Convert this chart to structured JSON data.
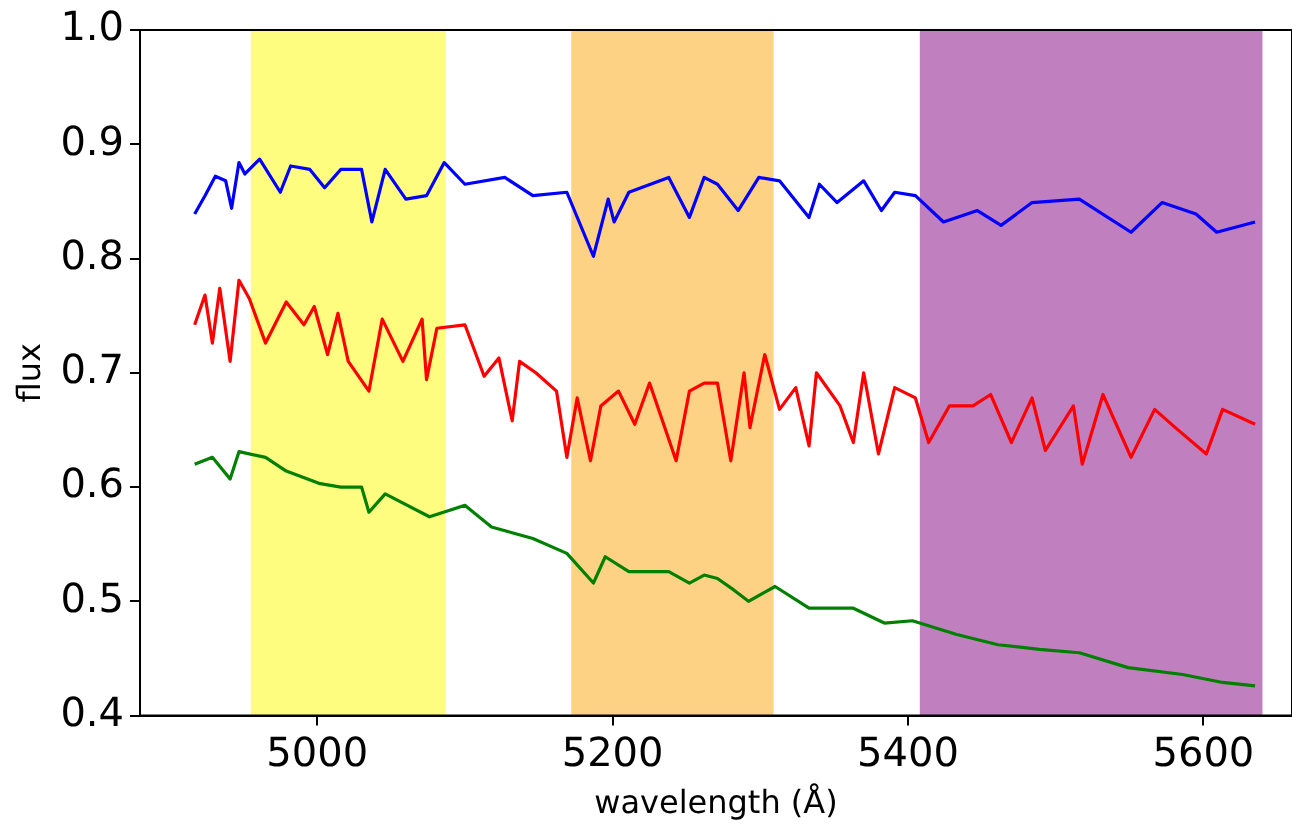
{
  "chart_data": {
    "type": "line",
    "xlabel": "wavelength (Å)",
    "ylabel": "flux",
    "xlim": [
      4880,
      5660
    ],
    "xticks": [
      5000,
      5200,
      5400,
      5600
    ],
    "ylim": [
      0.4,
      1.0
    ],
    "yticks": [
      {
        "value": 0.4,
        "label": "0.4"
      },
      {
        "value": 0.5,
        "label": "0.5"
      },
      {
        "value": 0.6,
        "label": "0.6"
      },
      {
        "value": 0.7,
        "label": "0.7"
      },
      {
        "value": 0.8,
        "label": "0.8"
      },
      {
        "value": 0.9,
        "label": "0.9"
      },
      {
        "value": 1.0,
        "label": "1.0"
      }
    ],
    "grid": false,
    "legend": false,
    "marker": "none",
    "line_style": "solid",
    "bands": [
      {
        "axis": "x",
        "from": 4955,
        "to": 5087,
        "color": "#fffd7f"
      },
      {
        "axis": "x",
        "from": 5172,
        "to": 5309,
        "color": "#fed285"
      },
      {
        "axis": "x",
        "from": 5408,
        "to": 5640,
        "color": "#c080bf"
      }
    ],
    "series": [
      {
        "color": "#0000ff",
        "x": [
          4917,
          4924,
          4931,
          4938,
          4942,
          4947,
          4951,
          4961,
          4975,
          4982,
          4995,
          5005,
          5016,
          5030,
          5037,
          5046,
          5060,
          5074,
          5086,
          5100,
          5127,
          5146,
          5169,
          5187,
          5197,
          5201,
          5211,
          5238,
          5252,
          5262,
          5271,
          5285,
          5299,
          5313,
          5333,
          5340,
          5352,
          5370,
          5382,
          5391,
          5405,
          5424,
          5447,
          5463,
          5484,
          5516,
          5551,
          5572,
          5595,
          5609,
          5635
        ],
        "values": [
          0.839,
          0.855,
          0.872,
          0.868,
          0.844,
          0.884,
          0.874,
          0.887,
          0.858,
          0.881,
          0.878,
          0.862,
          0.878,
          0.878,
          0.832,
          0.878,
          0.852,
          0.855,
          0.884,
          0.865,
          0.871,
          0.855,
          0.858,
          0.802,
          0.852,
          0.832,
          0.858,
          0.871,
          0.836,
          0.871,
          0.865,
          0.842,
          0.871,
          0.868,
          0.836,
          0.865,
          0.849,
          0.868,
          0.842,
          0.858,
          0.855,
          0.832,
          0.842,
          0.829,
          0.849,
          0.852,
          0.823,
          0.849,
          0.839,
          0.823,
          0.832
        ]
      },
      {
        "color": "#ff0000",
        "x": [
          4917,
          4924,
          4929,
          4934,
          4941,
          4947,
          4954,
          4965,
          4979,
          4991,
          4998,
          5007,
          5014,
          5021,
          5035,
          5044,
          5058,
          5071,
          5074,
          5081,
          5100,
          5113,
          5123,
          5132,
          5137,
          5148,
          5162,
          5169,
          5176,
          5185,
          5192,
          5204,
          5215,
          5225,
          5243,
          5252,
          5262,
          5271,
          5280,
          5289,
          5293,
          5303,
          5313,
          5324,
          5333,
          5338,
          5354,
          5363,
          5370,
          5380,
          5391,
          5405,
          5414,
          5428,
          5444,
          5456,
          5470,
          5484,
          5493,
          5512,
          5518,
          5532,
          5551,
          5567,
          5581,
          5602,
          5613,
          5635
        ],
        "values": [
          0.742,
          0.768,
          0.726,
          0.774,
          0.71,
          0.781,
          0.765,
          0.726,
          0.762,
          0.742,
          0.758,
          0.716,
          0.752,
          0.71,
          0.684,
          0.747,
          0.71,
          0.747,
          0.694,
          0.739,
          0.742,
          0.697,
          0.713,
          0.658,
          0.71,
          0.7,
          0.684,
          0.626,
          0.678,
          0.623,
          0.671,
          0.684,
          0.655,
          0.691,
          0.623,
          0.684,
          0.691,
          0.691,
          0.623,
          0.7,
          0.652,
          0.716,
          0.668,
          0.687,
          0.636,
          0.7,
          0.671,
          0.639,
          0.7,
          0.629,
          0.687,
          0.678,
          0.639,
          0.671,
          0.671,
          0.681,
          0.639,
          0.678,
          0.632,
          0.671,
          0.62,
          0.681,
          0.626,
          0.668,
          0.652,
          0.629,
          0.668,
          0.655
        ]
      },
      {
        "color": "#008000",
        "x": [
          4917,
          4929,
          4941,
          4947,
          4965,
          4979,
          5002,
          5016,
          5030,
          5035,
          5046,
          5076,
          5100,
          5118,
          5146,
          5169,
          5187,
          5195,
          5211,
          5238,
          5252,
          5262,
          5271,
          5282,
          5292,
          5310,
          5333,
          5363,
          5384,
          5403,
          5433,
          5461,
          5489,
          5516,
          5549,
          5586,
          5613,
          5635
        ],
        "values": [
          0.62,
          0.626,
          0.607,
          0.631,
          0.626,
          0.614,
          0.603,
          0.6,
          0.6,
          0.578,
          0.594,
          0.574,
          0.584,
          0.565,
          0.555,
          0.542,
          0.516,
          0.539,
          0.526,
          0.526,
          0.516,
          0.523,
          0.52,
          0.51,
          0.5,
          0.513,
          0.494,
          0.494,
          0.481,
          0.483,
          0.471,
          0.462,
          0.458,
          0.455,
          0.442,
          0.436,
          0.429,
          0.426
        ]
      }
    ]
  }
}
